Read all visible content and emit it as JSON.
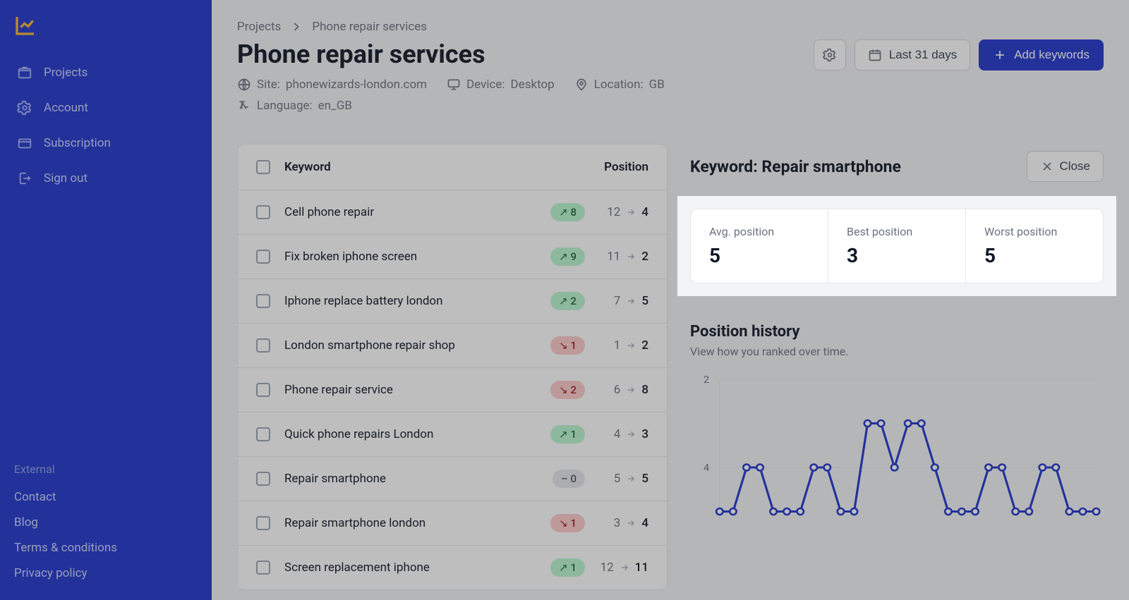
{
  "sidebar": {
    "nav": [
      {
        "label": "Projects",
        "icon": "folder"
      },
      {
        "label": "Account",
        "icon": "gear"
      },
      {
        "label": "Subscription",
        "icon": "card"
      },
      {
        "label": "Sign out",
        "icon": "signout"
      }
    ],
    "external_label": "External",
    "external_links": [
      "Contact",
      "Blog",
      "Terms & conditions",
      "Privacy policy"
    ]
  },
  "breadcrumb": {
    "root": "Projects",
    "current": "Phone repair services"
  },
  "page_title": "Phone repair services",
  "meta": {
    "site_label": "Site:",
    "site_value": "phonewizards-london.com",
    "device_label": "Device:",
    "device_value": "Desktop",
    "location_label": "Location:",
    "location_value": "GB",
    "language_label": "Language:",
    "language_value": "en_GB"
  },
  "actions": {
    "date_range": "Last 31 days",
    "add_keywords": "Add keywords"
  },
  "table": {
    "header": {
      "keyword": "Keyword",
      "position": "Position"
    },
    "rows": [
      {
        "keyword": "Cell phone repair",
        "dir": "up",
        "delta": "8",
        "from": "12",
        "to": "4"
      },
      {
        "keyword": "Fix broken iphone screen",
        "dir": "up",
        "delta": "9",
        "from": "11",
        "to": "2"
      },
      {
        "keyword": "Iphone replace battery london",
        "dir": "up",
        "delta": "2",
        "from": "7",
        "to": "5"
      },
      {
        "keyword": "London smartphone repair shop",
        "dir": "down",
        "delta": "1",
        "from": "1",
        "to": "2"
      },
      {
        "keyword": "Phone repair service",
        "dir": "down",
        "delta": "2",
        "from": "6",
        "to": "8"
      },
      {
        "keyword": "Quick phone repairs London",
        "dir": "up",
        "delta": "1",
        "from": "4",
        "to": "3"
      },
      {
        "keyword": "Repair smartphone",
        "dir": "neutral",
        "delta": "0",
        "from": "5",
        "to": "5"
      },
      {
        "keyword": "Repair smartphone london",
        "dir": "down",
        "delta": "1",
        "from": "3",
        "to": "4"
      },
      {
        "keyword": "Screen replacement iphone",
        "dir": "up",
        "delta": "1",
        "from": "12",
        "to": "11"
      }
    ]
  },
  "detail": {
    "title_prefix": "Keyword: ",
    "title_keyword": "Repair smartphone",
    "close_label": "Close",
    "stats": [
      {
        "label": "Avg. position",
        "value": "5"
      },
      {
        "label": "Best position",
        "value": "3"
      },
      {
        "label": "Worst position",
        "value": "5"
      }
    ],
    "history": {
      "title": "Position history",
      "subtitle": "View how you ranked over time.",
      "y_ticks": [
        "2",
        "4"
      ],
      "series_color": "#2236cc",
      "point_fill": "#ffffff",
      "values": [
        5,
        5,
        4,
        4,
        5,
        5,
        5,
        4,
        4,
        5,
        5,
        3,
        3,
        4,
        3,
        3,
        4,
        5,
        5,
        5,
        4,
        4,
        5,
        5,
        4,
        4,
        5,
        5,
        5
      ]
    }
  },
  "colors": {
    "sidebar_bg": "#2236cc",
    "primary": "#2236cc",
    "badge_up_bg": "#bbf7d0",
    "badge_up_fg": "#166534",
    "badge_down_bg": "#fecaca",
    "badge_down_fg": "#991b1b",
    "badge_neutral_bg": "#e5e7eb",
    "badge_neutral_fg": "#4b5563"
  }
}
